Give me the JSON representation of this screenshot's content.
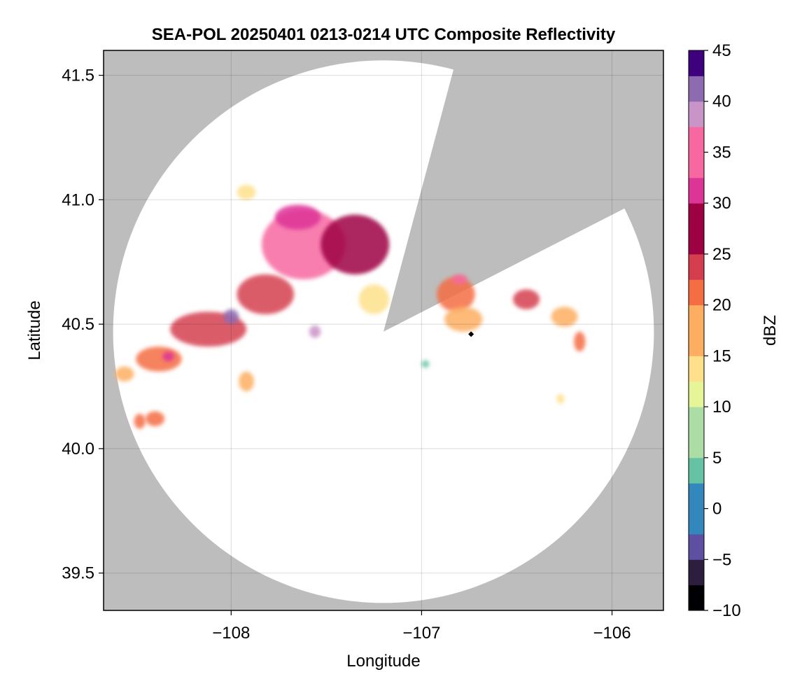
{
  "chart_data": {
    "type": "heatmap",
    "title": "SEA-POL 20250401 0213-0214 UTC Composite Reflectivity",
    "xlabel": "Longitude",
    "ylabel": "Latitude",
    "xlim": [
      -108.67,
      -105.73
    ],
    "ylim": [
      39.35,
      41.6
    ],
    "x_ticks": [
      -108,
      -107,
      -106
    ],
    "x_tick_labels": [
      "−108",
      "−107",
      "−106"
    ],
    "y_ticks": [
      39.5,
      40.0,
      40.5,
      41.0,
      41.5
    ],
    "y_tick_labels": [
      "39.5",
      "40.0",
      "40.5",
      "41.0",
      "41.5"
    ],
    "grid": true,
    "background_color": "#bdbdbd",
    "radar": {
      "center_lon": -107.2,
      "center_lat": 40.47,
      "range_lon": 1.42,
      "range_lat": 1.09,
      "blocked_sector_deg": [
        27,
        75
      ]
    },
    "colorbar": {
      "label": "dBZ",
      "range": [
        -10,
        45
      ],
      "ticks": [
        -10,
        -5,
        0,
        5,
        10,
        15,
        20,
        25,
        30,
        35,
        40,
        45
      ],
      "tick_labels": [
        "−10",
        "−5",
        "0",
        "5",
        "10",
        "15",
        "20",
        "25",
        "30",
        "35",
        "40",
        "45"
      ],
      "colors": [
        "#000004",
        "#2d1e3e",
        "#5e4fa2",
        "#3288bd",
        "#66c2a5",
        "#abdda4",
        "#e6f598",
        "#fee08b",
        "#fdae61",
        "#f46d43",
        "#d53e4f",
        "#9e0142",
        "#dd3497",
        "#f768a1",
        "#c994c7",
        "#8c6bb1",
        "#3f007d"
      ],
      "position": "right"
    },
    "echoes": [
      {
        "name": "main-cell-core",
        "lon": -107.62,
        "lat": 40.82,
        "rlon": 0.22,
        "rlat": 0.14,
        "dbz": 33
      },
      {
        "name": "main-cell-north",
        "lon": -107.65,
        "lat": 40.93,
        "rlon": 0.12,
        "rlat": 0.05,
        "dbz": 32
      },
      {
        "name": "main-cell-east",
        "lon": -107.35,
        "lat": 40.82,
        "rlon": 0.18,
        "rlat": 0.12,
        "dbz": 27
      },
      {
        "name": "main-cell-southwest",
        "lon": -107.82,
        "lat": 40.62,
        "rlon": 0.15,
        "rlat": 0.08,
        "dbz": 26
      },
      {
        "name": "western-band-1",
        "lon": -108.12,
        "lat": 40.48,
        "rlon": 0.2,
        "rlat": 0.07,
        "dbz": 24
      },
      {
        "name": "western-band-2",
        "lon": -108.38,
        "lat": 40.36,
        "rlon": 0.12,
        "rlat": 0.05,
        "dbz": 22
      },
      {
        "name": "western-band-tip",
        "lon": -108.56,
        "lat": 40.3,
        "rlon": 0.05,
        "rlat": 0.03,
        "dbz": 18
      },
      {
        "name": "west-core-1",
        "lon": -108.0,
        "lat": 40.53,
        "rlon": 0.04,
        "rlat": 0.03,
        "dbz": 40
      },
      {
        "name": "west-core-2",
        "lon": -107.56,
        "lat": 40.47,
        "rlon": 0.03,
        "rlat": 0.025,
        "dbz": 38
      },
      {
        "name": "west-core-3",
        "lon": -108.33,
        "lat": 40.37,
        "rlon": 0.03,
        "rlat": 0.02,
        "dbz": 31
      },
      {
        "name": "central-fringe",
        "lon": -107.25,
        "lat": 40.6,
        "rlon": 0.08,
        "rlat": 0.06,
        "dbz": 14
      },
      {
        "name": "south-blob-1",
        "lon": -108.4,
        "lat": 40.12,
        "rlon": 0.05,
        "rlat": 0.03,
        "dbz": 22
      },
      {
        "name": "south-blob-2",
        "lon": -108.48,
        "lat": 40.11,
        "rlon": 0.03,
        "rlat": 0.03,
        "dbz": 20
      },
      {
        "name": "small-cell-south",
        "lon": -107.92,
        "lat": 40.27,
        "rlon": 0.04,
        "rlat": 0.04,
        "dbz": 19
      },
      {
        "name": "north-fringe",
        "lon": -107.92,
        "lat": 41.03,
        "rlon": 0.05,
        "rlat": 0.03,
        "dbz": 15
      },
      {
        "name": "east-cell-core",
        "lon": -106.82,
        "lat": 40.62,
        "rlon": 0.1,
        "rlat": 0.07,
        "dbz": 21
      },
      {
        "name": "east-cell-peak",
        "lon": -106.8,
        "lat": 40.68,
        "rlon": 0.04,
        "rlat": 0.02,
        "dbz": 33
      },
      {
        "name": "east-cell-south",
        "lon": -106.78,
        "lat": 40.52,
        "rlon": 0.1,
        "rlat": 0.05,
        "dbz": 17
      },
      {
        "name": "far-east-cell",
        "lon": -106.45,
        "lat": 40.6,
        "rlon": 0.07,
        "rlat": 0.04,
        "dbz": 24
      },
      {
        "name": "far-east-fringe",
        "lon": -106.25,
        "lat": 40.53,
        "rlon": 0.07,
        "rlat": 0.04,
        "dbz": 16
      },
      {
        "name": "far-east-small",
        "lon": -106.17,
        "lat": 40.43,
        "rlon": 0.03,
        "rlat": 0.04,
        "dbz": 20
      },
      {
        "name": "isolated-1",
        "lon": -106.98,
        "lat": 40.34,
        "rlon": 0.02,
        "rlat": 0.015,
        "dbz": 4
      },
      {
        "name": "isolated-2",
        "lon": -106.27,
        "lat": 40.2,
        "rlon": 0.02,
        "rlat": 0.02,
        "dbz": 14
      }
    ],
    "markers": [
      {
        "name": "radar-location",
        "lon": -106.74,
        "lat": 40.46,
        "symbol": "diamond"
      }
    ]
  }
}
